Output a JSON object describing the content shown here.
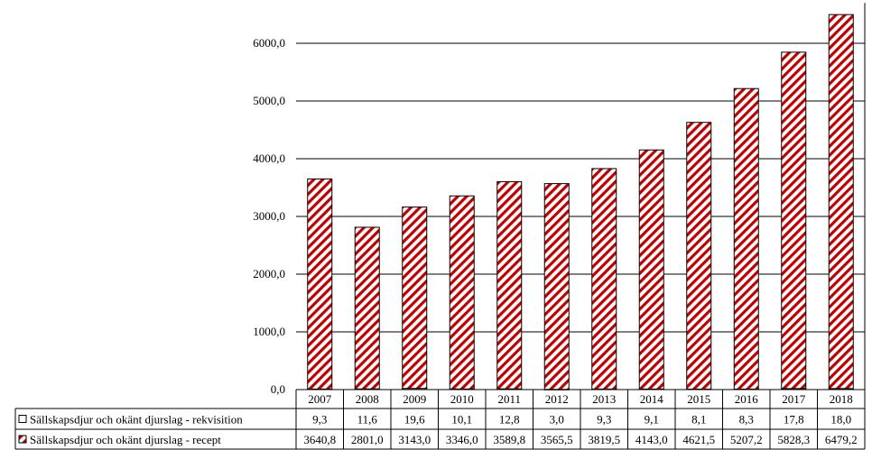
{
  "chart_data": {
    "type": "bar",
    "stacked": true,
    "categories": [
      "2007",
      "2008",
      "2009",
      "2010",
      "2011",
      "2012",
      "2013",
      "2014",
      "2015",
      "2016",
      "2017",
      "2018"
    ],
    "series": [
      {
        "name": "Sällskapsdjur och okänt djurslag - rekvisition",
        "values": [
          9.3,
          11.6,
          19.6,
          10.1,
          12.8,
          3.0,
          9.3,
          9.1,
          8.1,
          8.3,
          17.8,
          18.0
        ],
        "labels": [
          "9,3",
          "11,6",
          "19,6",
          "10,1",
          "12,8",
          "3,0",
          "9,3",
          "9,1",
          "8,1",
          "8,3",
          "17,8",
          "18,0"
        ],
        "fill": "#ffffff",
        "stroke": "#000000"
      },
      {
        "name": "Sällskapsdjur och okänt djurslag - recept",
        "values": [
          3640.8,
          2801.0,
          3143.0,
          3346.0,
          3589.8,
          3565.5,
          3819.5,
          4143.0,
          4621.5,
          5207.2,
          5828.3,
          6479.2
        ],
        "labels": [
          "3640,8",
          "2801,0",
          "3143,0",
          "3346,0",
          "3589,8",
          "3565,5",
          "3819,5",
          "4143,0",
          "4621,5",
          "5207,2",
          "5828,3",
          "6479,2"
        ],
        "fill_pattern": "diagonal-hatch",
        "hatch_color": "#c00000",
        "stroke": "#000000"
      }
    ],
    "y_ticks": [
      0,
      1000,
      2000,
      3000,
      4000,
      5000,
      6000
    ],
    "y_tick_labels": [
      "0,0",
      "1000,0",
      "2000,0",
      "3000,0",
      "4000,0",
      "5000,0",
      "6000,0"
    ],
    "ylim": [
      0,
      6700
    ],
    "grid": true,
    "legend": "data-table",
    "title": "",
    "xlabel": "",
    "ylabel": ""
  }
}
